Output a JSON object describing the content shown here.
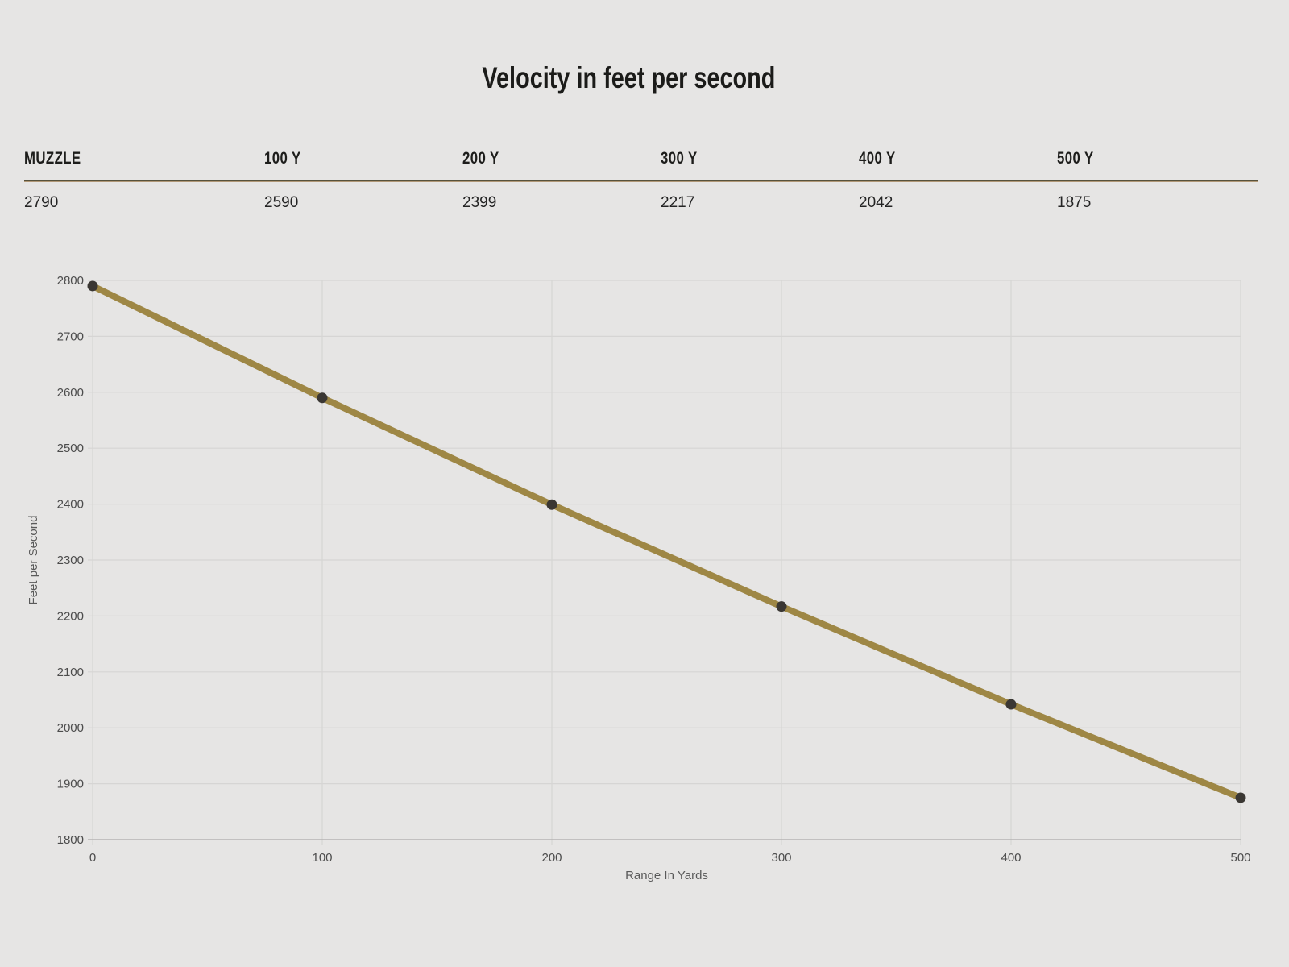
{
  "title": "Velocity in feet per second",
  "table": {
    "columns": [
      {
        "label": "MUZZLE",
        "value": "2790"
      },
      {
        "label": "100 Y",
        "value": "2590"
      },
      {
        "label": "200 Y",
        "value": "2399"
      },
      {
        "label": "300 Y",
        "value": "2217"
      },
      {
        "label": "400 Y",
        "value": "2042"
      },
      {
        "label": "500 Y",
        "value": "1875"
      }
    ]
  },
  "chart_data": {
    "type": "line",
    "title": "Velocity in feet per second",
    "x": [
      0,
      100,
      200,
      300,
      400,
      500
    ],
    "series": [
      {
        "name": "Velocity",
        "values": [
          2790,
          2590,
          2399,
          2217,
          2042,
          1875
        ]
      }
    ],
    "xlabel": "Range In Yards",
    "ylabel": "Feet per Second",
    "xlim": [
      0,
      500
    ],
    "ylim": [
      1800,
      2800
    ],
    "x_ticks": [
      0,
      100,
      200,
      300,
      400,
      500
    ],
    "y_ticks": [
      1800,
      1900,
      2000,
      2100,
      2200,
      2300,
      2400,
      2500,
      2600,
      2700,
      2800
    ],
    "grid": true,
    "legend": "none",
    "colors": {
      "line": "#9e8745",
      "marker": "#3a3733",
      "grid": "#d6d5d4",
      "axis": "#b5b4b3",
      "tick_label": "#4c4c4c",
      "axis_title": "#5a5a5a",
      "background": "#e6e5e4",
      "text": "#1d1d1b",
      "separator_dark": "#57523c",
      "separator_light": "#b19877"
    }
  }
}
